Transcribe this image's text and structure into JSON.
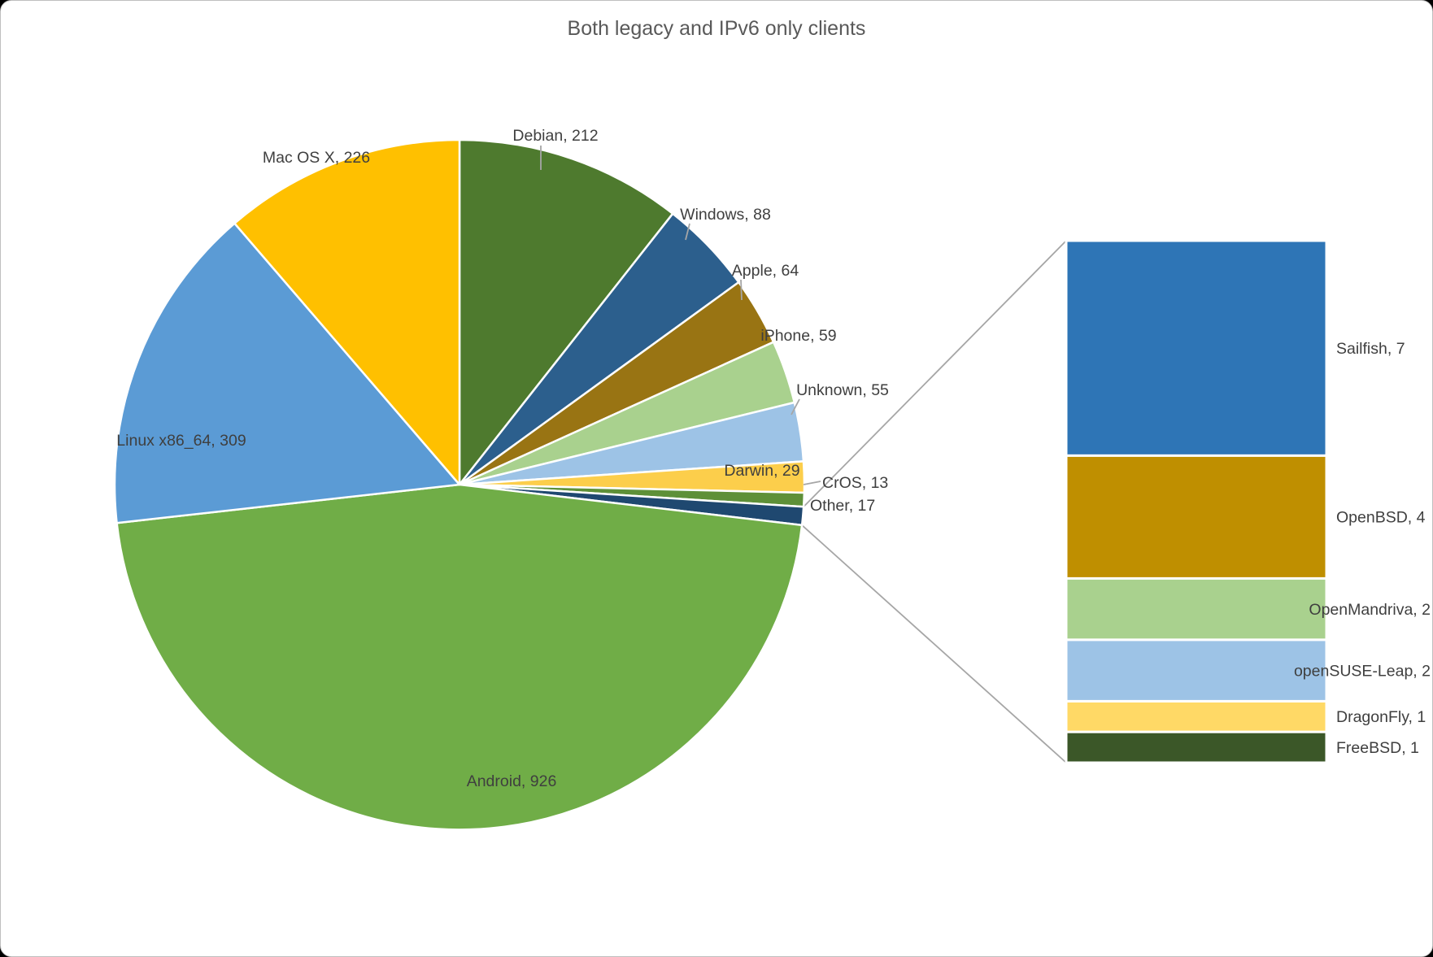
{
  "chart_data": {
    "type": "pie",
    "subtype": "bar-of-pie",
    "title": "Both legacy and IPv6 only clients",
    "label_format": "{label}, {value}",
    "total": 1998,
    "start_angle_deg": 0,
    "direction": "clockwise",
    "legend_position": "none",
    "grid": false,
    "pie_series": [
      {
        "label": "Debian",
        "value": 212,
        "color": "#4E7A2E"
      },
      {
        "label": "Windows",
        "value": 88,
        "color": "#2C5F8D"
      },
      {
        "label": "Apple",
        "value": 64,
        "color": "#997413"
      },
      {
        "label": "iPhone",
        "value": 59,
        "color": "#A9D18E"
      },
      {
        "label": "Unknown",
        "value": 55,
        "color": "#9DC3E6"
      },
      {
        "label": "Darwin",
        "value": 29,
        "color": "#FCCE4B"
      },
      {
        "label": "CrOS",
        "value": 13,
        "color": "#5E9038"
      },
      {
        "label": "Other",
        "value": 17,
        "color": "#1F4870",
        "other": true
      },
      {
        "label": "Android",
        "value": 926,
        "color": "#70AD47"
      },
      {
        "label": "Linux x86_64",
        "value": 309,
        "color": "#5B9BD5"
      },
      {
        "label": "Mac OS X",
        "value": 226,
        "color": "#FFC000"
      }
    ],
    "bar_series": [
      {
        "label": "Sailfish",
        "value": 7,
        "color": "#2E75B6"
      },
      {
        "label": "OpenBSD",
        "value": 4,
        "color": "#BF8F00"
      },
      {
        "label": "OpenMandriva",
        "value": 2,
        "color": "#A9D18E"
      },
      {
        "label": "openSUSE-Leap",
        "value": 2,
        "color": "#9DC3E6"
      },
      {
        "label": "DragonFly",
        "value": 1,
        "color": "#FFD966"
      },
      {
        "label": "FreeBSD",
        "value": 1,
        "color": "#3B5728"
      }
    ],
    "colors": {
      "title_text": "#595959",
      "label_text": "#3F3F3F",
      "connector_line": "#A6A6A6",
      "slice_border": "#FFFFFF",
      "background": "#FFFFFF"
    }
  }
}
